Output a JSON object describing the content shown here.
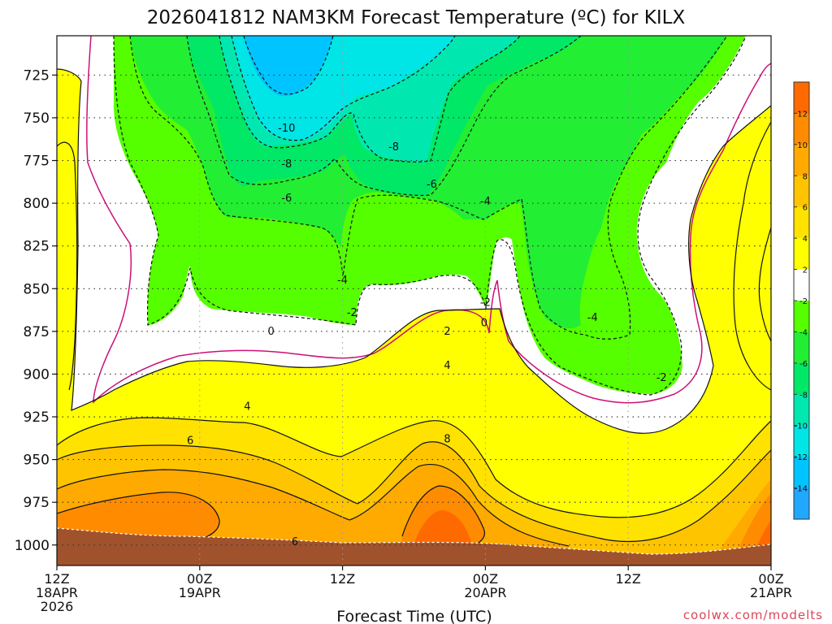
{
  "chart_data": {
    "type": "contour",
    "title": "2026041812 NAM3KM Forecast Temperature (ºC) for KILX",
    "xlabel": "Forecast Time (UTC)",
    "ylabel": "",
    "credit": "coolwx.com/modelts",
    "y_ticks": [
      "725",
      "750",
      "775",
      "800",
      "825",
      "850",
      "875",
      "900",
      "925",
      "950",
      "975",
      "1000"
    ],
    "y_range_hpa": [
      1012,
      702
    ],
    "x_range_hours": [
      0,
      60
    ],
    "x_ticks": [
      {
        "hour": 0,
        "lines": [
          "12Z",
          "18APR",
          "2026"
        ]
      },
      {
        "hour": 12,
        "lines": [
          "00Z",
          "19APR"
        ]
      },
      {
        "hour": 24,
        "lines": [
          "12Z"
        ]
      },
      {
        "hour": 36,
        "lines": [
          "00Z",
          "20APR"
        ]
      },
      {
        "hour": 48,
        "lines": [
          "12Z"
        ]
      },
      {
        "hour": 60,
        "lines": [
          "00Z",
          "21APR"
        ]
      }
    ],
    "grid": true,
    "colorbar_labels": [
      "12",
      "10",
      "8",
      "6",
      "4",
      "2",
      "-2",
      "-4",
      "-6",
      "-8",
      "-10",
      "-12",
      "-14"
    ],
    "colorbar_colors": [
      "#ff6a00",
      "#ff8c00",
      "#ffaa00",
      "#ffc400",
      "#ffe200",
      "#ffff00",
      "#ffffff",
      "#55ff00",
      "#22ee33",
      "#00e866",
      "#00e8b0",
      "#00e5e5",
      "#00c4ff",
      "#20a8ff"
    ],
    "contour_labels": [
      {
        "text": "-10",
        "hour": 19.3,
        "p": 758
      },
      {
        "text": "-8",
        "hour": 28.3,
        "p": 769
      },
      {
        "text": "-8",
        "hour": 19.3,
        "p": 779
      },
      {
        "text": "-6",
        "hour": 31.5,
        "p": 791
      },
      {
        "text": "-6",
        "hour": 19.3,
        "p": 799
      },
      {
        "text": "-4",
        "hour": 36.0,
        "p": 801
      },
      {
        "text": "-4",
        "hour": 24.0,
        "p": 847
      },
      {
        "text": "-2",
        "hour": 24.8,
        "p": 866
      },
      {
        "text": "-2",
        "hour": 36.0,
        "p": 860
      },
      {
        "text": "0",
        "hour": 35.9,
        "p": 872
      },
      {
        "text": "0",
        "hour": 18.0,
        "p": 877
      },
      {
        "text": "2",
        "hour": 32.8,
        "p": 877
      },
      {
        "text": "-4",
        "hour": 45.0,
        "p": 869
      },
      {
        "text": "-2",
        "hour": 50.8,
        "p": 904
      },
      {
        "text": "4",
        "hour": 32.8,
        "p": 897
      },
      {
        "text": "4",
        "hour": 16.0,
        "p": 921
      },
      {
        "text": "6",
        "hour": 11.2,
        "p": 941
      },
      {
        "text": "8",
        "hour": 32.8,
        "p": 940
      },
      {
        "text": "6",
        "hour": 20.0,
        "p": 1000
      }
    ]
  }
}
